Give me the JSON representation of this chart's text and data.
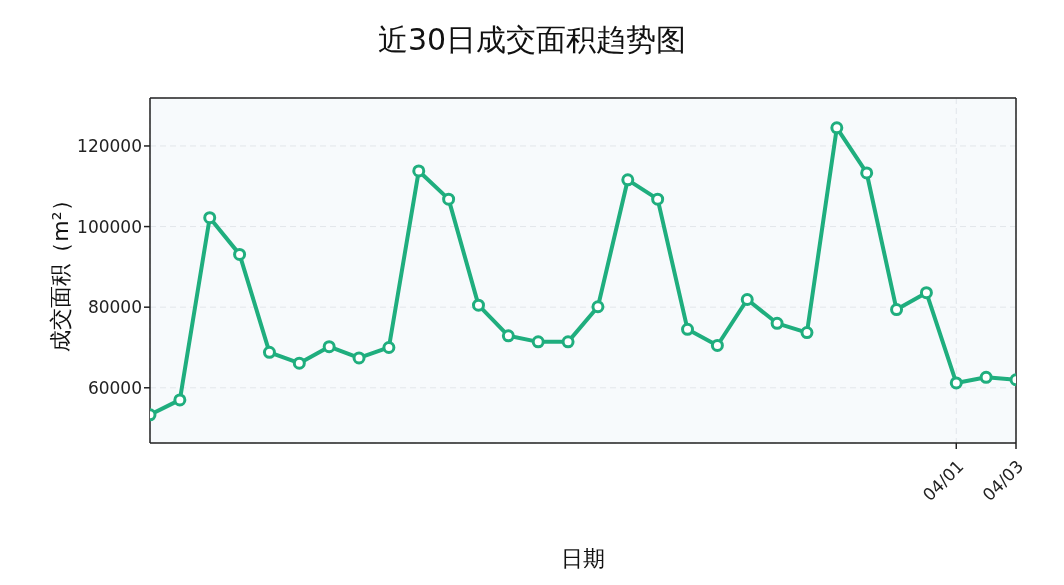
{
  "chart_data": {
    "type": "line",
    "title": "近30日成交面积趋势图",
    "xlabel": "日期",
    "ylabel": "成交面积（m²）",
    "x": [
      "--03-05",
      "--03-06",
      "--03-07",
      "--03-08",
      "--03-09",
      "--03-10",
      "--03-11",
      "--03-12",
      "--03-13",
      "--03-14",
      "--03-15",
      "--03-16",
      "--03-17",
      "--03-18",
      "--03-19",
      "--03-20",
      "--03-21",
      "--03-22",
      "--03-23",
      "--03-24",
      "--03-25",
      "--03-26",
      "--03-27",
      "--03-28",
      "--03-29",
      "--03-30",
      "--03-31",
      "--04-01",
      "--04-02",
      "--04-03"
    ],
    "series": [
      {
        "color": "#1fae7e",
        "values": [
          53300,
          57000,
          102200,
          93100,
          68800,
          66100,
          70200,
          67400,
          70000,
          113800,
          106800,
          80500,
          72900,
          71400,
          71400,
          80100,
          111600,
          106800,
          74500,
          70500,
          81900,
          76000,
          73700,
          124500,
          113300,
          79400,
          83600,
          61200,
          62600,
          62000
        ]
      }
    ],
    "xlim": [
      "--03-05",
      "--04-03"
    ],
    "xticks": [
      {
        "value": "--04-01",
        "label": "04/01"
      },
      {
        "value": "--04-03",
        "label": "04/03"
      }
    ],
    "ylim": [
      46300,
      131900
    ],
    "yticks": [
      60000,
      80000,
      100000,
      120000
    ],
    "grid": true,
    "marker": "circle",
    "line_style": "solid",
    "legend": false
  }
}
